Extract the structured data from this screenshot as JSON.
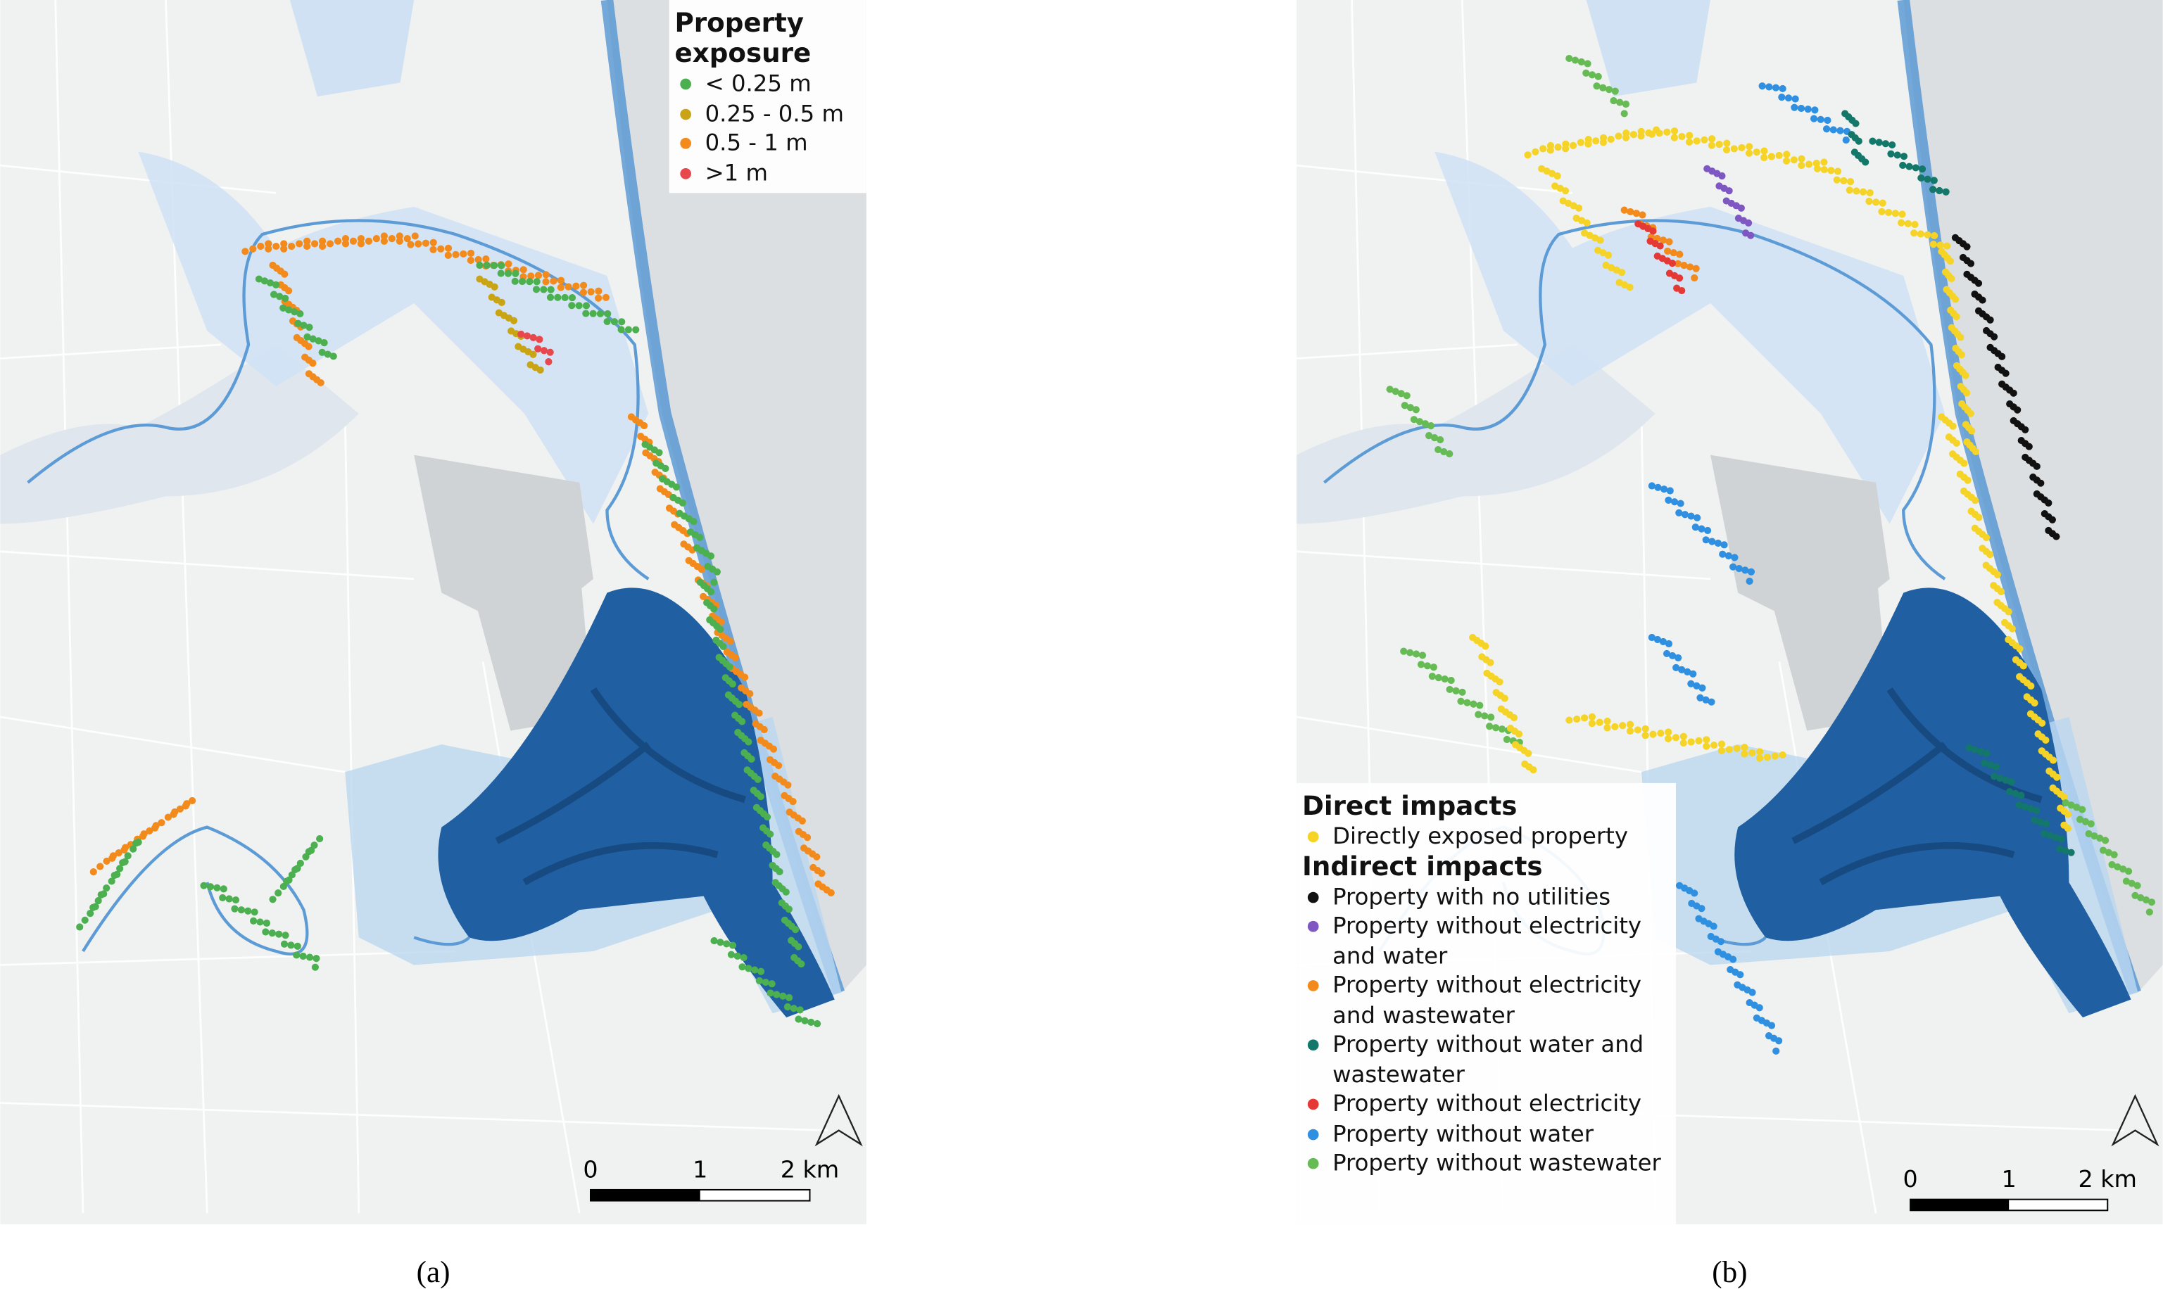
{
  "panels": [
    {
      "label": "(a)",
      "legend": {
        "sections": [
          {
            "title": "Property exposure",
            "items": [
              {
                "label": "< 0.25 m",
                "color": "#4caf50"
              },
              {
                "label": "0.25 - 0.5 m",
                "color": "#c9a414"
              },
              {
                "label": "0.5 - 1 m",
                "color": "#f28a1c"
              },
              {
                "label": ">1 m",
                "color": "#e8474c"
              }
            ]
          }
        ]
      },
      "scale_bar": [
        "0",
        "1",
        "2 km"
      ]
    },
    {
      "label": "(b)",
      "legend": {
        "sections": [
          {
            "title": "Direct impacts",
            "items": [
              {
                "label": "Directly exposed property",
                "color": "#f5d327"
              }
            ]
          },
          {
            "title": "Indirect impacts",
            "items": [
              {
                "label": "Property with no utilities",
                "color": "#111111"
              },
              {
                "label": "Property without electricity and water",
                "color": "#7e57c2"
              },
              {
                "label": "Property without electricity and wastewater",
                "color": "#f28a1c"
              },
              {
                "label": "Property without water and wastewater",
                "color": "#13776a"
              },
              {
                "label": "Property without electricity",
                "color": "#e53935"
              },
              {
                "label": "Property without water",
                "color": "#2f8fe0"
              },
              {
                "label": "Property without wastewater",
                "color": "#66bb55"
              }
            ]
          }
        ]
      },
      "scale_bar": [
        "0",
        "1",
        "2 km"
      ]
    }
  ]
}
